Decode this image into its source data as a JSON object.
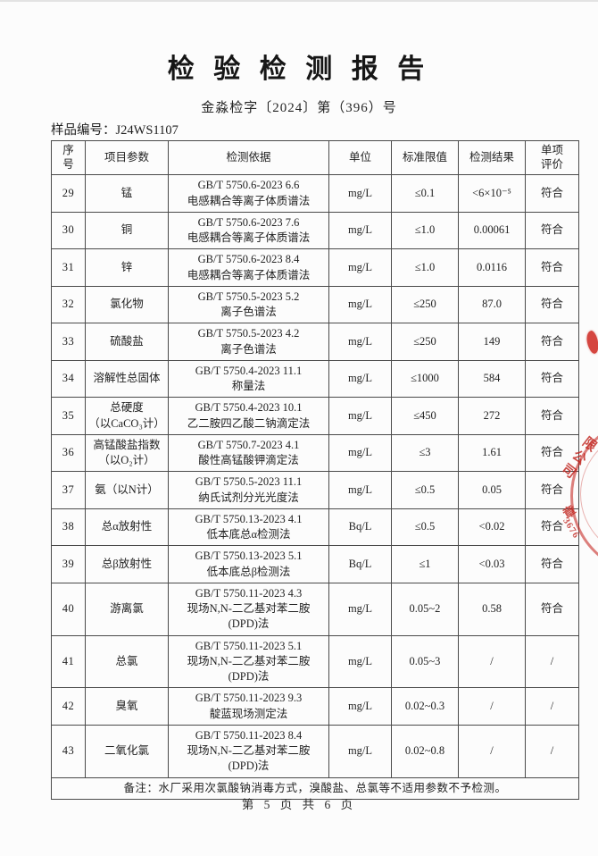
{
  "page": {
    "title": "检 验 检 测 报 告",
    "doc_number": "金淼检字〔2024〕第（396）号",
    "sample_number": "样品编号：J24WS1107",
    "footer": "第 5 页 共 6 页"
  },
  "table": {
    "headers": [
      "序\n号",
      "项目参数",
      "检测依据",
      "单位",
      "标准限值",
      "检测结果",
      "单项\n评价"
    ],
    "rows": [
      {
        "no": "29",
        "param": "锰",
        "method": "GB/T 5750.6-2023 6.6\n电感耦合等离子体质谱法",
        "unit": "mg/L",
        "limit": "≤0.1",
        "result": "<6×10⁻⁵",
        "eval": "符合"
      },
      {
        "no": "30",
        "param": "铜",
        "method": "GB/T 5750.6-2023 7.6\n电感耦合等离子体质谱法",
        "unit": "mg/L",
        "limit": "≤1.0",
        "result": "0.00061",
        "eval": "符合"
      },
      {
        "no": "31",
        "param": "锌",
        "method": "GB/T 5750.6-2023 8.4\n电感耦合等离子体质谱法",
        "unit": "mg/L",
        "limit": "≤1.0",
        "result": "0.0116",
        "eval": "符合"
      },
      {
        "no": "32",
        "param": "氯化物",
        "method": "GB/T 5750.5-2023 5.2\n离子色谱法",
        "unit": "mg/L",
        "limit": "≤250",
        "result": "87.0",
        "eval": "符合"
      },
      {
        "no": "33",
        "param": "硫酸盐",
        "method": "GB/T 5750.5-2023 4.2\n离子色谱法",
        "unit": "mg/L",
        "limit": "≤250",
        "result": "149",
        "eval": "符合"
      },
      {
        "no": "34",
        "param": "溶解性总固体",
        "method": "GB/T 5750.4-2023 11.1\n称量法",
        "unit": "mg/L",
        "limit": "≤1000",
        "result": "584",
        "eval": "符合"
      },
      {
        "no": "35",
        "param": "总硬度\n（以CaCO₃计）",
        "method": "GB/T 5750.4-2023 10.1\n乙二胺四乙酸二钠滴定法",
        "unit": "mg/L",
        "limit": "≤450",
        "result": "272",
        "eval": "符合"
      },
      {
        "no": "36",
        "param": "高锰酸盐指数\n（以O₂计）",
        "method": "GB/T 5750.7-2023 4.1\n酸性高锰酸钾滴定法",
        "unit": "mg/L",
        "limit": "≤3",
        "result": "1.61",
        "eval": "符合"
      },
      {
        "no": "37",
        "param": "氨（以N计）",
        "method": "GB/T 5750.5-2023 11.1\n纳氏试剂分光光度法",
        "unit": "mg/L",
        "limit": "≤0.5",
        "result": "0.05",
        "eval": "符合"
      },
      {
        "no": "38",
        "param": "总α放射性",
        "method": "GB/T 5750.13-2023 4.1\n低本底总α检测法",
        "unit": "Bq/L",
        "limit": "≤0.5",
        "result": "<0.02",
        "eval": "符合"
      },
      {
        "no": "39",
        "param": "总β放射性",
        "method": "GB/T 5750.13-2023 5.1\n低本底总β检测法",
        "unit": "Bq/L",
        "limit": "≤1",
        "result": "<0.03",
        "eval": "符合"
      },
      {
        "no": "40",
        "param": "游离氯",
        "method": "GB/T 5750.11-2023 4.3\n现场N,N-二乙基对苯二胺\n(DPD)法",
        "unit": "mg/L",
        "limit": "0.05~2",
        "result": "0.58",
        "eval": "符合"
      },
      {
        "no": "41",
        "param": "总氯",
        "method": "GB/T 5750.11-2023 5.1\n现场N,N-二乙基对苯二胺\n(DPD)法",
        "unit": "mg/L",
        "limit": "0.05~3",
        "result": "/",
        "eval": "/"
      },
      {
        "no": "42",
        "param": "臭氧",
        "method": "GB/T 5750.11-2023 9.3\n靛蓝现场测定法",
        "unit": "mg/L",
        "limit": "0.02~0.3",
        "result": "/",
        "eval": "/"
      },
      {
        "no": "43",
        "param": "二氧化氯",
        "method": "GB/T 5750.11-2023 8.4\n现场N,N-二乙基对苯二胺\n(DPD)法",
        "unit": "mg/L",
        "limit": "0.02~0.8",
        "result": "/",
        "eval": "/"
      }
    ],
    "note": "备注：水厂采用次氯酸钠消毒方式，溴酸盐、总氯等不适用参数不予检测。"
  },
  "stamp": {
    "company_fragment": "限公司",
    "zhang_fragment": "章",
    "number_fragment": "3676",
    "color": "#c9342c"
  }
}
